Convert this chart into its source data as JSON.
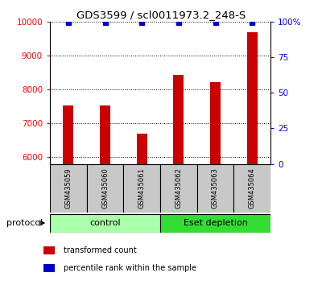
{
  "title": "GDS3599 / scl0011973.2_248-S",
  "categories": [
    "GSM435059",
    "GSM435060",
    "GSM435061",
    "GSM435062",
    "GSM435063",
    "GSM435064"
  ],
  "transformed_counts": [
    7520,
    7530,
    6700,
    8430,
    8220,
    9680
  ],
  "percentile_ranks": [
    99,
    99,
    99,
    99,
    99,
    99
  ],
  "ylim_left": [
    5800,
    10000
  ],
  "ylim_right": [
    0,
    100
  ],
  "yticks_left": [
    6000,
    7000,
    8000,
    9000,
    10000
  ],
  "ytick_labels_left": [
    "6000",
    "7000",
    "8000",
    "9000",
    "10000"
  ],
  "yticks_right": [
    0,
    25,
    50,
    75,
    100
  ],
  "ytick_labels_right": [
    "0",
    "25",
    "50",
    "75",
    "100%"
  ],
  "groups": [
    {
      "label": "control",
      "indices": [
        0,
        1,
        2
      ],
      "color": "#AAFFAA"
    },
    {
      "label": "Eset depletion",
      "indices": [
        3,
        4,
        5
      ],
      "color": "#33DD33"
    }
  ],
  "bar_color": "#CC0000",
  "dot_color": "#0000CC",
  "background_color": "#ffffff",
  "sample_bg_color": "#C8C8C8",
  "protocol_text": "protocol",
  "legend_items": [
    {
      "color": "#CC0000",
      "label": "transformed count"
    },
    {
      "color": "#0000CC",
      "label": "percentile rank within the sample"
    }
  ],
  "bar_width": 0.28
}
